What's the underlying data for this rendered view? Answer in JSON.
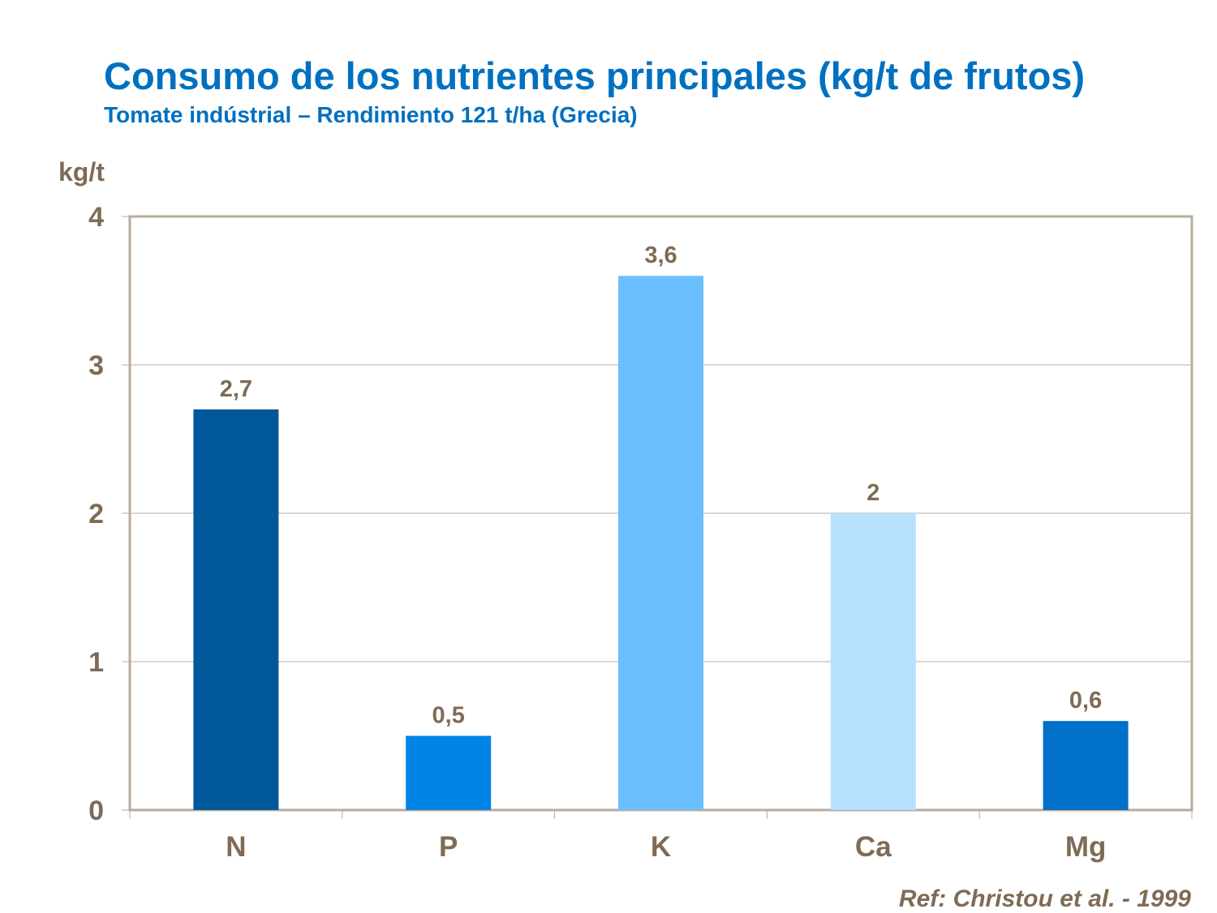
{
  "chart_data": {
    "type": "bar",
    "title": "Consumo de los nutrientes principales (kg/t de frutos)",
    "subtitle": "Tomate indústrial – Rendimiento 121 t/ha (Grecia)",
    "xlabel": "",
    "ylabel": "kg/t",
    "categories": [
      "N",
      "P",
      "K",
      "Ca",
      "Mg"
    ],
    "values": [
      2.7,
      0.5,
      3.6,
      2,
      0.6
    ],
    "data_labels": [
      "2,7",
      "0,5",
      "3,6",
      "2",
      "0,6"
    ],
    "colors": [
      "#00589b",
      "#0084e6",
      "#6bbfff",
      "#b8e0ff",
      "#0070c8"
    ],
    "ylim": [
      0,
      4
    ],
    "yticks": [
      "0",
      "1",
      "2",
      "3",
      "4"
    ],
    "grid": true,
    "legend": "none",
    "annotation": "Ref: Christou et al. - 1999"
  }
}
